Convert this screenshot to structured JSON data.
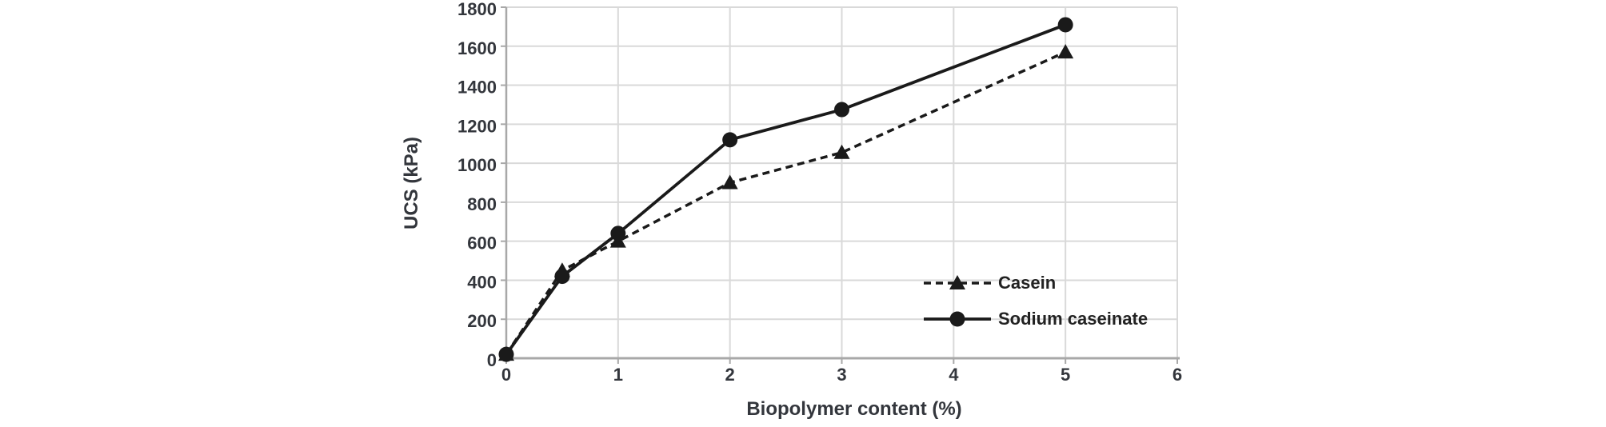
{
  "chart_data": {
    "type": "line",
    "title": "",
    "xlabel": "Biopolymer content (%)",
    "ylabel": "UCS (kPa)",
    "x": [
      0,
      0.5,
      1,
      2,
      3,
      5
    ],
    "series": [
      {
        "name": "Casein",
        "line_style": "dashed",
        "marker": "triangle",
        "values": [
          20,
          450,
          600,
          900,
          1055,
          1570
        ]
      },
      {
        "name": "Sodium caseinate",
        "line_style": "solid",
        "marker": "circle",
        "values": [
          20,
          420,
          640,
          1120,
          1275,
          1710
        ]
      }
    ],
    "xlim": [
      0,
      6
    ],
    "ylim": [
      0,
      1800
    ],
    "x_ticks": [
      0,
      1,
      2,
      3,
      4,
      5,
      6
    ],
    "y_ticks": [
      0,
      200,
      400,
      600,
      800,
      1000,
      1200,
      1400,
      1600,
      1800
    ],
    "grid": true,
    "legend_position": "inside-right",
    "colors": {
      "series": "#1a1a1a",
      "grid": "#d9d9d9",
      "axis": "#a8a8a8",
      "tick_text": "#33363c"
    }
  }
}
